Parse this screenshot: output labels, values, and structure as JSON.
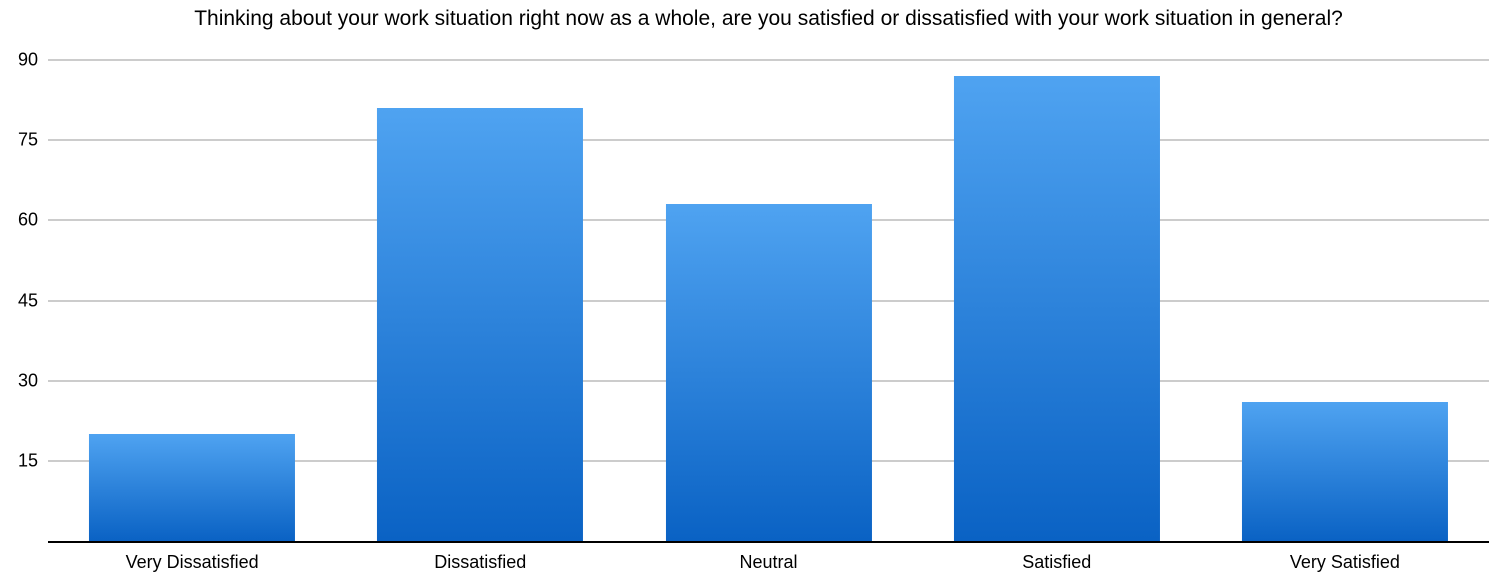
{
  "chart_data": {
    "type": "bar",
    "title": "Thinking about your work situation right now as a whole, are you satisfied or dissatisfied with your work situation in general?",
    "categories": [
      "Very Dissatisfied",
      "Dissatisfied",
      "Neutral",
      "Satisfied",
      "Very Satisfied"
    ],
    "values": [
      20,
      81,
      63,
      87,
      26
    ],
    "xlabel": "",
    "ylabel": "",
    "ylim": [
      0,
      90
    ],
    "yticks": [
      15,
      30,
      45,
      60,
      75,
      90
    ],
    "grid": true,
    "legend": false,
    "colors": {
      "bar_gradient_top": "#4FA3F1",
      "bar_gradient_bottom": "#0A62C4",
      "gridline": "#CCCCCC",
      "axis_line": "#000000",
      "text": "#000000",
      "background": "#FFFFFF"
    }
  }
}
